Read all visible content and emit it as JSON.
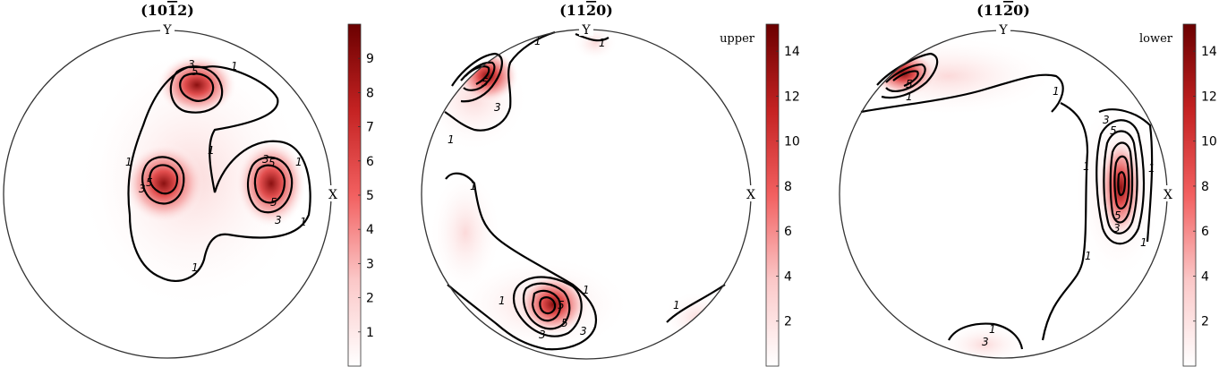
{
  "colors": {
    "max": "#6b0000",
    "mid": "#f26060",
    "min": "#ffffff",
    "contour": "#000000"
  },
  "chart_data": [
    {
      "type": "pole-figure",
      "title_hkl": [
        "10",
        "1",
        "2"
      ],
      "title_bar_index": 1,
      "axis_labels": {
        "top": "Y",
        "right": "X"
      },
      "hemisphere_label": "",
      "colorbar": {
        "min": 0,
        "max": 10,
        "ticks": [
          "1",
          "2",
          "3",
          "4",
          "5",
          "6",
          "7",
          "8",
          "9"
        ]
      },
      "contour_levels": [
        "1",
        "3",
        "5"
      ]
    },
    {
      "type": "pole-figure",
      "title_hkl": [
        "11",
        "2",
        "0"
      ],
      "title_bar_index": 1,
      "axis_labels": {
        "top": "Y",
        "right": "X"
      },
      "hemisphere_label": "upper",
      "colorbar": {
        "min": 0,
        "max": 15.2,
        "ticks": [
          "2",
          "4",
          "6",
          "8",
          "10",
          "12",
          "14"
        ]
      },
      "contour_levels": [
        "1",
        "3",
        "5"
      ]
    },
    {
      "type": "pole-figure",
      "title_hkl": [
        "11",
        "2",
        "0"
      ],
      "title_bar_index": 1,
      "axis_labels": {
        "top": "Y",
        "right": "X"
      },
      "hemisphere_label": "lower",
      "colorbar": {
        "min": 0,
        "max": 15.2,
        "ticks": [
          "2",
          "4",
          "6",
          "8",
          "10",
          "12",
          "14"
        ]
      },
      "contour_levels": [
        "1",
        "3",
        "5"
      ]
    }
  ]
}
